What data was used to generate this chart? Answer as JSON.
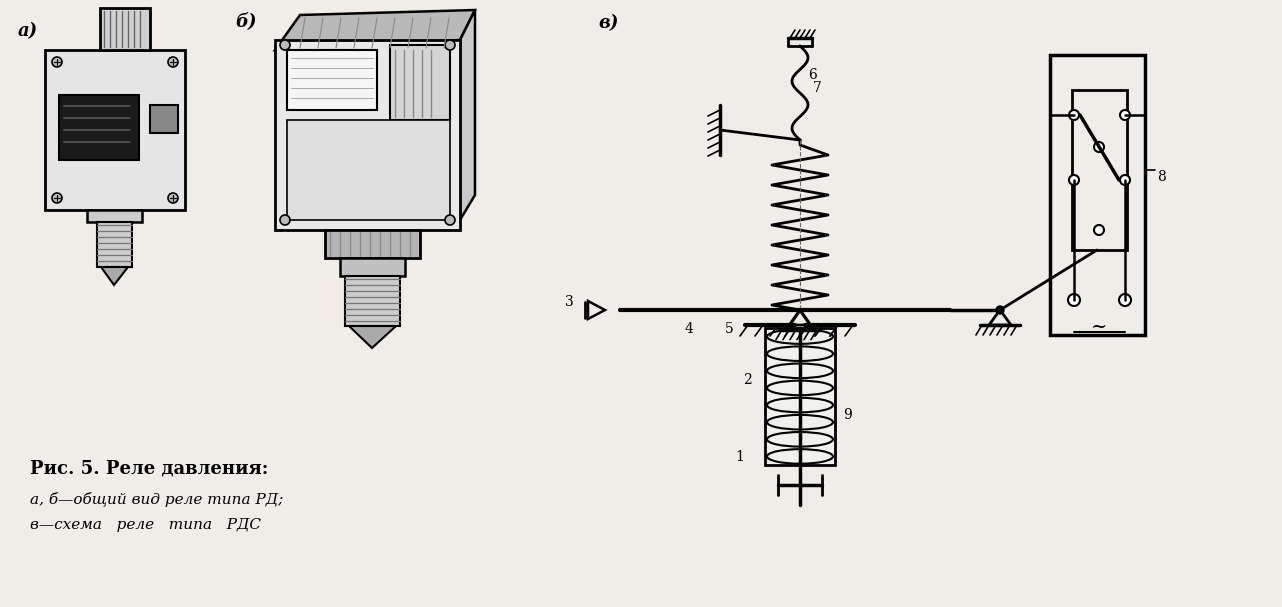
{
  "background_color": "#f0ede8",
  "caption_line1": "Рис. 5. Реле давления:",
  "caption_line2": "а, б—общий вид реле типа РД;",
  "caption_line3": "в—схема   реле   типа   РДС",
  "label_a": "а)",
  "label_b": "б)",
  "label_v": "в)",
  "fig_width": 12.82,
  "fig_height": 6.07,
  "text_color": "#000000"
}
